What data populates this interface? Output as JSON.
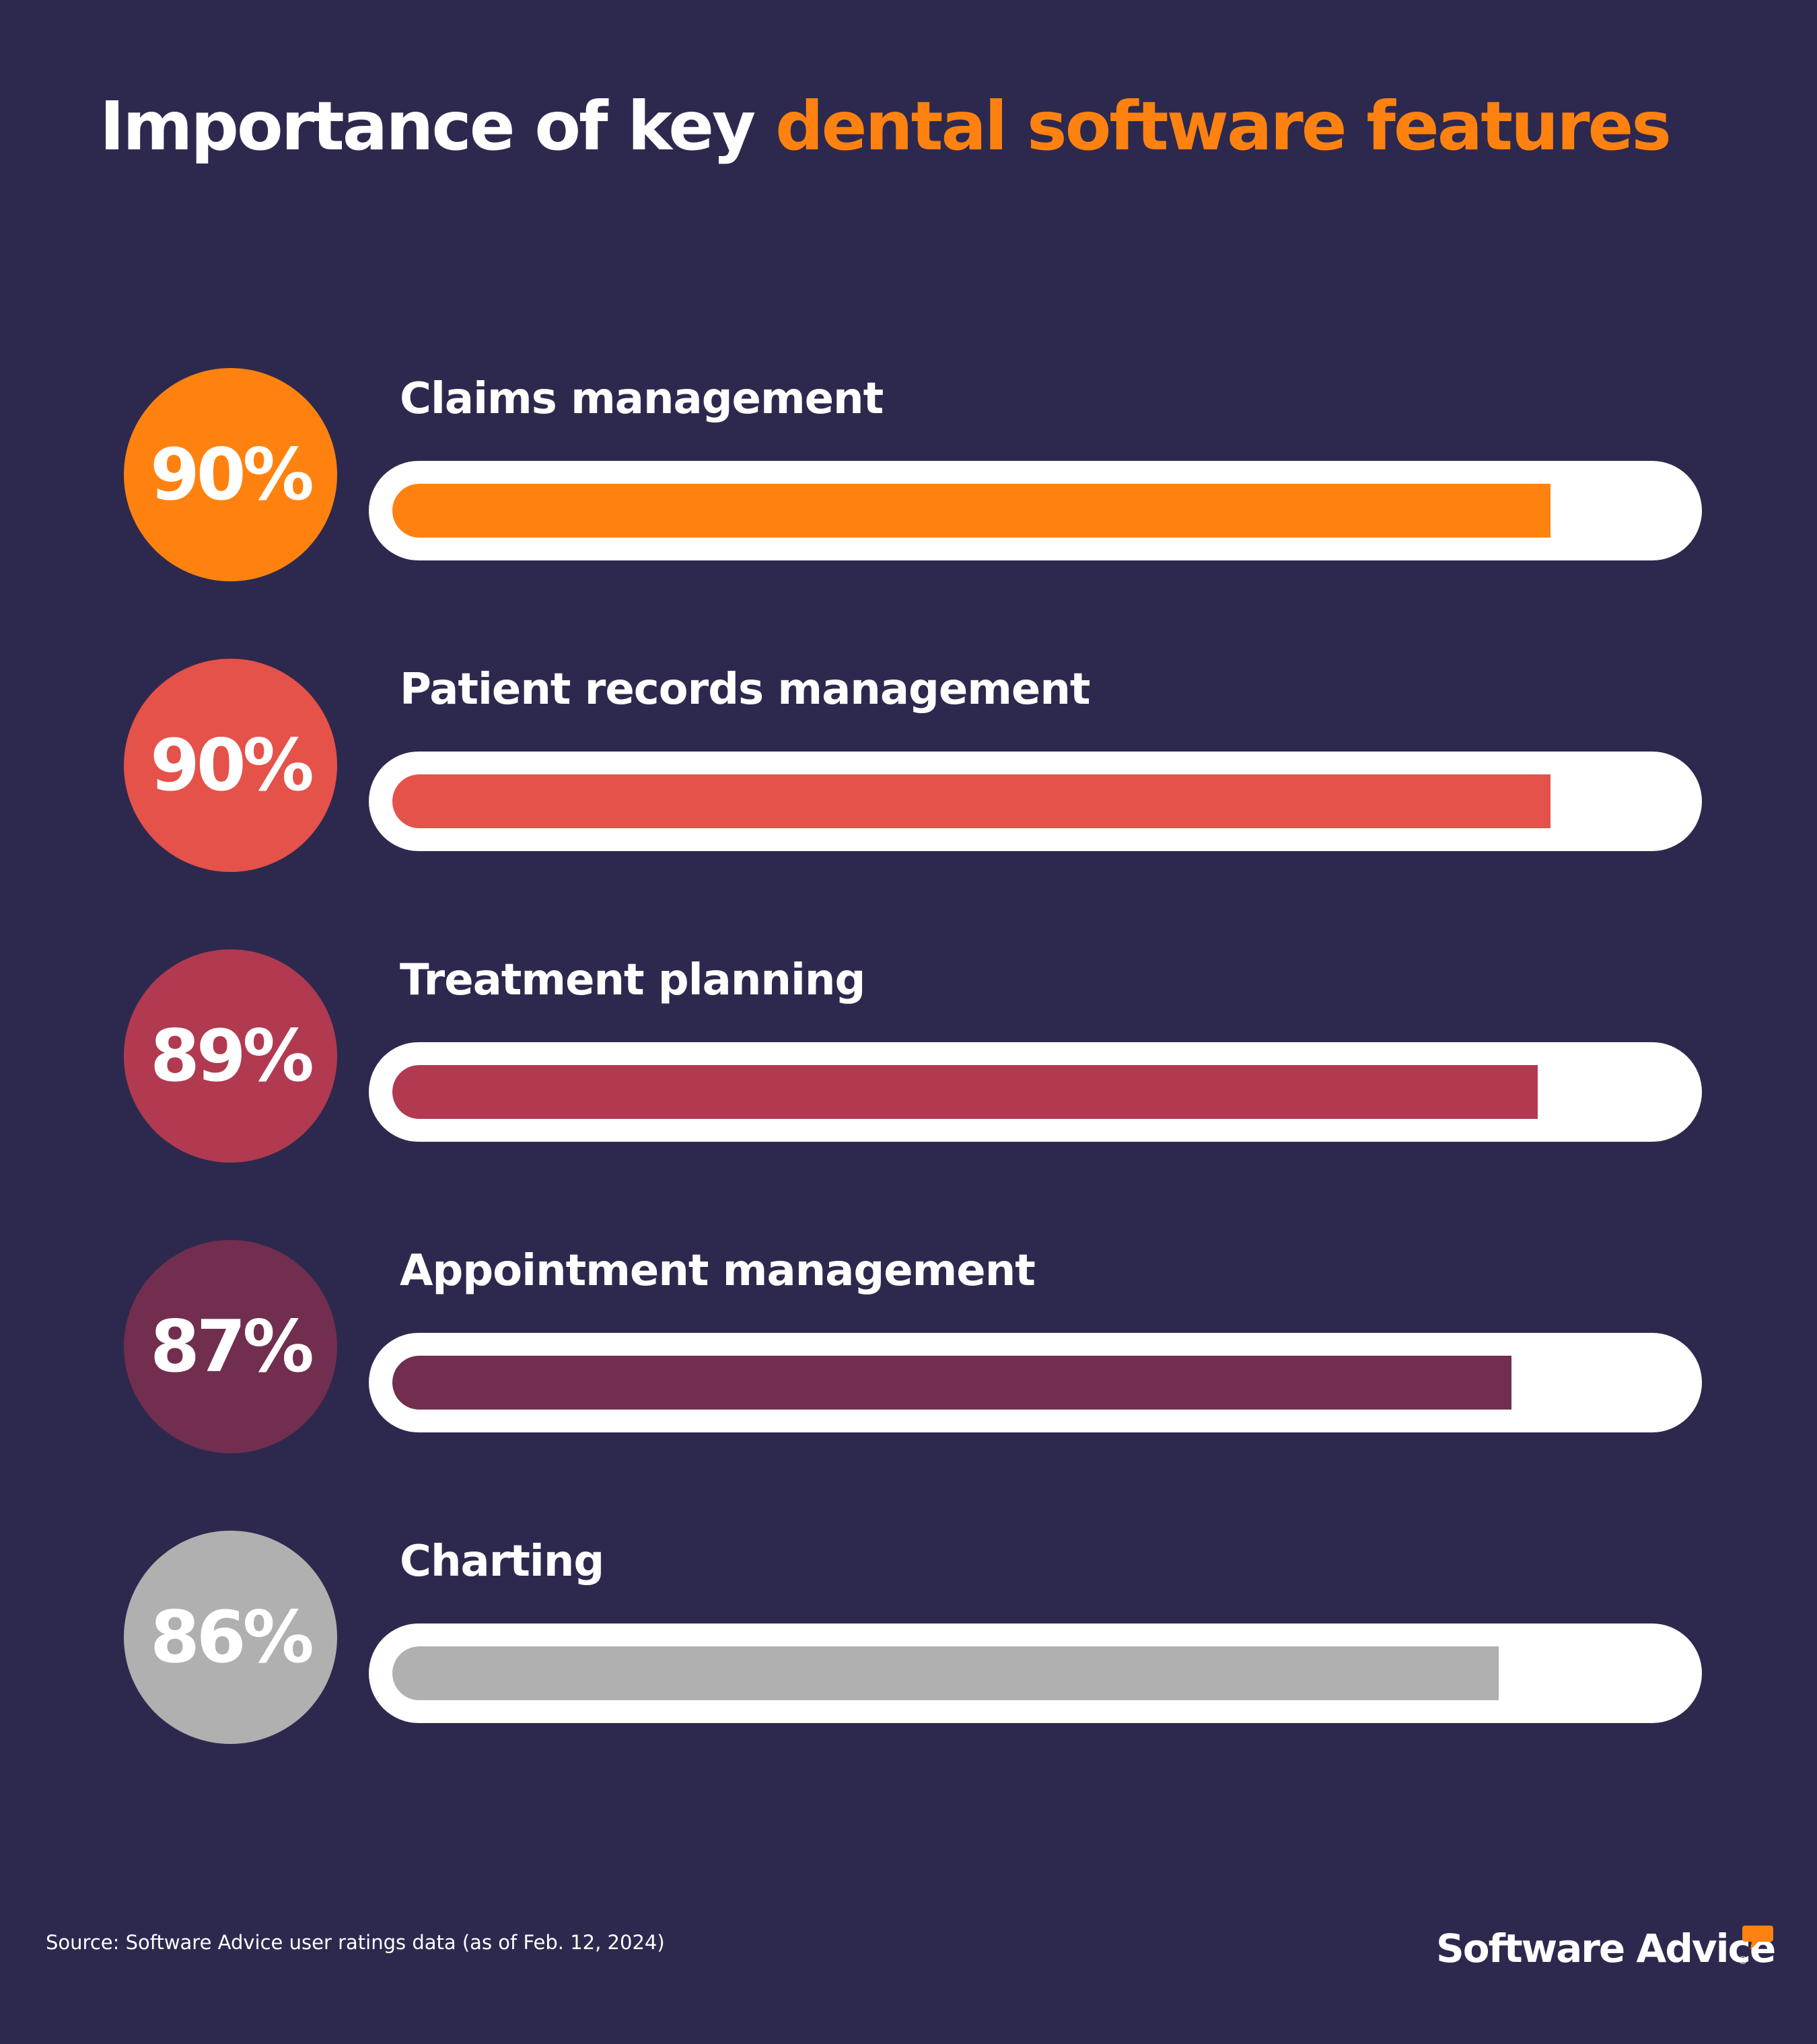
{
  "title": {
    "prefix": "Importance of key",
    "highlight": "dental software features"
  },
  "colors": {
    "background": "#2d294e",
    "accent": "#ff8210",
    "track": "#ffffff",
    "text": "#ffffff"
  },
  "rows": [
    {
      "label": "Claims management",
      "value": 90,
      "display": "90%",
      "color": "#ff8210"
    },
    {
      "label": "Patient records management",
      "value": 90,
      "display": "90%",
      "color": "#e4524a"
    },
    {
      "label": "Treatment planning",
      "value": 89,
      "display": "89%",
      "color": "#b13a50"
    },
    {
      "label": "Appointment management",
      "value": 87,
      "display": "87%",
      "color": "#722e4e"
    },
    {
      "label": "Charting",
      "value": 86,
      "display": "86%",
      "color": "#b0b0b0"
    }
  ],
  "footer": {
    "source": "Source: Software Advice user ratings data (as of Feb. 12, 2024)",
    "logo_text": "Software Advice",
    "logo_mark": "®",
    "logo_icon": "speech-bubble-icon"
  },
  "chart_data": {
    "type": "bar",
    "orientation": "horizontal",
    "title": "Importance of key dental software features",
    "categories": [
      "Claims management",
      "Patient records management",
      "Treatment planning",
      "Appointment management",
      "Charting"
    ],
    "values": [
      90,
      90,
      89,
      87,
      86
    ],
    "value_labels": [
      "90%",
      "90%",
      "89%",
      "87%",
      "86%"
    ],
    "colors": [
      "#ff8210",
      "#e4524a",
      "#b13a50",
      "#722e4e",
      "#b0b0b0"
    ],
    "unit": "%",
    "xlim": [
      0,
      100
    ],
    "xlabel": "",
    "ylabel": "",
    "grid": false,
    "legend": "none",
    "source": "Source: Software Advice user ratings data (as of Feb. 12, 2024)"
  }
}
